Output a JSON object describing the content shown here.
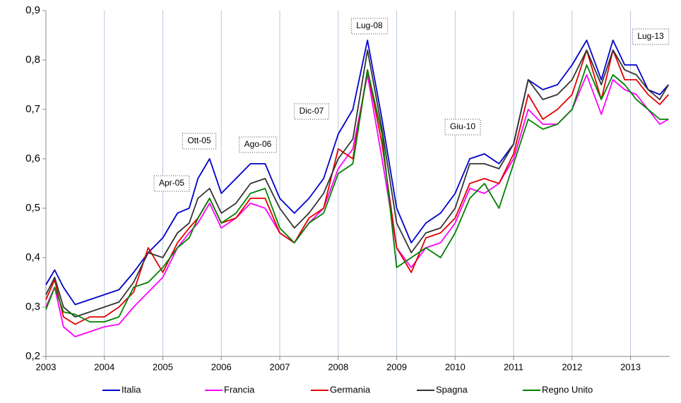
{
  "chart_data": {
    "type": "line",
    "x": [
      2003.0,
      2003.15,
      2003.3,
      2003.5,
      2003.75,
      2004.0,
      2004.25,
      2004.5,
      2004.75,
      2005.0,
      2005.25,
      2005.45,
      2005.6,
      2005.8,
      2006.0,
      2006.25,
      2006.5,
      2006.75,
      2007.0,
      2007.25,
      2007.5,
      2007.75,
      2008.0,
      2008.25,
      2008.5,
      2008.75,
      2009.0,
      2009.25,
      2009.5,
      2009.75,
      2010.0,
      2010.25,
      2010.5,
      2010.75,
      2011.0,
      2011.25,
      2011.5,
      2011.75,
      2012.0,
      2012.25,
      2012.5,
      2012.7,
      2012.9,
      2013.1,
      2013.3,
      2013.5,
      2013.65
    ],
    "series": [
      {
        "name": "Italia",
        "color": "#0000cc",
        "values": [
          0.345,
          0.375,
          0.34,
          0.305,
          0.315,
          0.325,
          0.335,
          0.37,
          0.41,
          0.44,
          0.49,
          0.5,
          0.56,
          0.6,
          0.53,
          0.56,
          0.59,
          0.59,
          0.52,
          0.49,
          0.52,
          0.56,
          0.65,
          0.7,
          0.84,
          0.68,
          0.5,
          0.43,
          0.47,
          0.49,
          0.53,
          0.6,
          0.61,
          0.59,
          0.63,
          0.76,
          0.74,
          0.75,
          0.79,
          0.84,
          0.76,
          0.84,
          0.79,
          0.79,
          0.74,
          0.73,
          0.75
        ]
      },
      {
        "name": "Francia",
        "color": "#ff00ff",
        "values": [
          0.3,
          0.34,
          0.26,
          0.24,
          0.25,
          0.26,
          0.265,
          0.3,
          0.33,
          0.36,
          0.42,
          0.45,
          0.47,
          0.51,
          0.46,
          0.48,
          0.51,
          0.5,
          0.45,
          0.43,
          0.47,
          0.5,
          0.58,
          0.62,
          0.77,
          0.6,
          0.42,
          0.38,
          0.42,
          0.43,
          0.47,
          0.54,
          0.53,
          0.55,
          0.6,
          0.7,
          0.67,
          0.67,
          0.7,
          0.77,
          0.69,
          0.76,
          0.74,
          0.73,
          0.7,
          0.67,
          0.68
        ]
      },
      {
        "name": "Germania",
        "color": "#e00000",
        "values": [
          0.315,
          0.355,
          0.28,
          0.265,
          0.28,
          0.28,
          0.3,
          0.33,
          0.42,
          0.37,
          0.43,
          0.46,
          0.48,
          0.52,
          0.47,
          0.48,
          0.52,
          0.52,
          0.45,
          0.43,
          0.48,
          0.5,
          0.62,
          0.6,
          0.78,
          0.63,
          0.42,
          0.37,
          0.44,
          0.45,
          0.48,
          0.55,
          0.56,
          0.55,
          0.61,
          0.73,
          0.68,
          0.7,
          0.73,
          0.82,
          0.72,
          0.82,
          0.76,
          0.76,
          0.73,
          0.71,
          0.73
        ]
      },
      {
        "name": "Spagna",
        "color": "#333333",
        "values": [
          0.325,
          0.36,
          0.3,
          0.28,
          0.29,
          0.3,
          0.31,
          0.35,
          0.41,
          0.4,
          0.45,
          0.47,
          0.52,
          0.54,
          0.49,
          0.51,
          0.55,
          0.56,
          0.5,
          0.46,
          0.49,
          0.53,
          0.6,
          0.64,
          0.82,
          0.66,
          0.47,
          0.41,
          0.45,
          0.46,
          0.5,
          0.59,
          0.59,
          0.58,
          0.63,
          0.76,
          0.72,
          0.73,
          0.76,
          0.82,
          0.75,
          0.82,
          0.78,
          0.77,
          0.74,
          0.72,
          0.75
        ]
      },
      {
        "name": "Regno Unito",
        "color": "#008000",
        "values": [
          0.295,
          0.34,
          0.29,
          0.285,
          0.27,
          0.27,
          0.28,
          0.34,
          0.35,
          0.38,
          0.42,
          0.44,
          0.48,
          0.52,
          0.47,
          0.49,
          0.53,
          0.54,
          0.46,
          0.43,
          0.47,
          0.49,
          0.57,
          0.59,
          0.78,
          0.65,
          0.38,
          0.4,
          0.42,
          0.4,
          0.45,
          0.52,
          0.55,
          0.5,
          0.59,
          0.68,
          0.66,
          0.67,
          0.7,
          0.79,
          0.72,
          0.77,
          0.75,
          0.72,
          0.7,
          0.68,
          0.68
        ]
      }
    ],
    "xlim": [
      2003,
      2013.67
    ],
    "xticks": [
      2003,
      2004,
      2005,
      2006,
      2007,
      2008,
      2009,
      2010,
      2011,
      2012,
      2013
    ],
    "ylim": [
      0.2,
      0.9
    ],
    "yticks": [
      {
        "value": 0.2,
        "label": "0,2"
      },
      {
        "value": 0.3,
        "label": "0,3"
      },
      {
        "value": 0.4,
        "label": "0,4"
      },
      {
        "value": 0.5,
        "label": "0,5"
      },
      {
        "value": 0.6,
        "label": "0,6"
      },
      {
        "value": 0.7,
        "label": "0,7"
      },
      {
        "value": 0.8,
        "label": "0,8"
      },
      {
        "value": 0.9,
        "label": "0,9"
      }
    ],
    "grid": true,
    "annotations": [
      "Apr-05",
      "Ott-05",
      "Ago-06",
      "Dic-07",
      "Lug-08",
      "Giu-10",
      "Lug-13"
    ],
    "legend": "bottom"
  }
}
